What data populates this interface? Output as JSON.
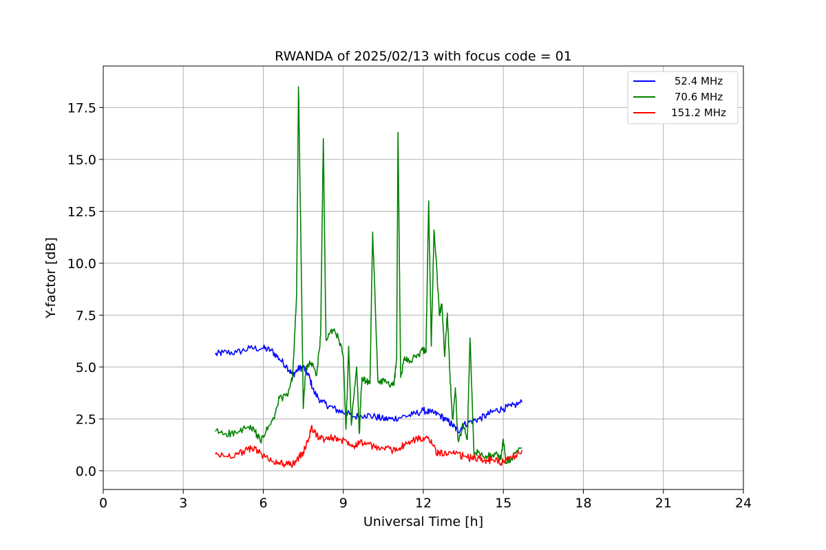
{
  "chart_data": {
    "type": "line",
    "title": "RWANDA of 2025/02/13 with focus code = 01",
    "xlabel": "Universal Time [h]",
    "ylabel": "Y-factor [dB]",
    "xlim": [
      0,
      24
    ],
    "ylim": [
      -0.9,
      19.5
    ],
    "xticks": [
      0,
      3,
      6,
      9,
      12,
      15,
      18,
      21,
      24
    ],
    "xtick_labels": [
      "0",
      "3",
      "6",
      "9",
      "12",
      "15",
      "18",
      "21",
      "24"
    ],
    "yticks": [
      0.0,
      2.5,
      5.0,
      7.5,
      10.0,
      12.5,
      15.0,
      17.5
    ],
    "ytick_labels": [
      "0.0",
      "2.5",
      "5.0",
      "7.5",
      "10.0",
      "12.5",
      "15.0",
      "17.5"
    ],
    "grid": true,
    "legend_position": "top-right",
    "series": [
      {
        "name": "52.4 MHz",
        "color": "#0000ff",
        "x": [
          4.2,
          4.5,
          5.0,
          5.5,
          6.0,
          6.3,
          6.6,
          6.9,
          7.1,
          7.3,
          7.5,
          7.7,
          7.9,
          8.2,
          8.5,
          8.8,
          9.1,
          9.4,
          9.8,
          10.2,
          10.5,
          10.8,
          11.2,
          11.6,
          12.0,
          12.3,
          12.6,
          12.9,
          13.1,
          13.3,
          13.5,
          13.8,
          14.1,
          14.4,
          14.7,
          15.0,
          15.3,
          15.7
        ],
        "y": [
          5.6,
          5.7,
          5.7,
          5.9,
          5.9,
          5.8,
          5.4,
          5.0,
          4.6,
          4.9,
          5.0,
          4.6,
          3.8,
          3.3,
          3.1,
          2.9,
          2.8,
          2.6,
          2.7,
          2.6,
          2.5,
          2.5,
          2.6,
          2.7,
          2.9,
          2.8,
          2.7,
          2.4,
          2.2,
          1.9,
          2.2,
          2.4,
          2.5,
          2.7,
          2.9,
          3.0,
          3.1,
          3.3
        ]
      },
      {
        "name": "70.6 MHz",
        "color": "#008000",
        "x": [
          4.2,
          4.6,
          5.0,
          5.4,
          5.7,
          5.9,
          6.1,
          6.4,
          6.6,
          6.9,
          7.1,
          7.25,
          7.32,
          7.4,
          7.5,
          7.6,
          7.8,
          8.0,
          8.15,
          8.25,
          8.35,
          8.6,
          8.8,
          9.0,
          9.1,
          9.2,
          9.3,
          9.5,
          9.6,
          9.7,
          9.85,
          10.0,
          10.1,
          10.3,
          10.6,
          10.9,
          11.0,
          11.05,
          11.15,
          11.3,
          11.5,
          11.8,
          12.0,
          12.1,
          12.2,
          12.3,
          12.4,
          12.5,
          12.6,
          12.7,
          12.8,
          12.9,
          13.0,
          13.1,
          13.2,
          13.3,
          13.5,
          13.65,
          13.75,
          13.9,
          14.1,
          14.4,
          14.7,
          14.9,
          15.0,
          15.1,
          15.3,
          15.7
        ],
        "y": [
          1.9,
          1.8,
          1.8,
          2.1,
          1.9,
          1.4,
          1.9,
          2.5,
          3.5,
          3.6,
          4.5,
          8.5,
          18.5,
          12.0,
          3.0,
          5.0,
          5.2,
          4.6,
          6.5,
          16.0,
          6.3,
          6.8,
          6.5,
          5.5,
          2.0,
          6.0,
          2.2,
          5.0,
          1.8,
          4.5,
          4.3,
          4.2,
          11.5,
          4.3,
          4.3,
          4.1,
          5.5,
          16.3,
          4.5,
          5.5,
          5.3,
          5.6,
          5.8,
          5.7,
          13.0,
          6.0,
          11.6,
          9.8,
          7.5,
          8.0,
          5.5,
          7.6,
          4.5,
          2.5,
          4.0,
          1.5,
          2.2,
          1.5,
          6.4,
          0.8,
          0.9,
          0.7,
          0.8,
          0.6,
          1.5,
          0.4,
          0.6,
          1.1
        ]
      },
      {
        "name": "151.2 MHz",
        "color": "#ff0000",
        "x": [
          4.2,
          4.6,
          5.0,
          5.4,
          5.7,
          6.0,
          6.3,
          6.6,
          6.9,
          7.1,
          7.3,
          7.5,
          7.7,
          7.8,
          8.0,
          8.3,
          8.6,
          8.9,
          9.2,
          9.4,
          9.6,
          9.9,
          10.2,
          10.5,
          10.8,
          11.1,
          11.4,
          11.7,
          12.0,
          12.3,
          12.5,
          12.6,
          12.9,
          13.2,
          13.5,
          13.8,
          14.1,
          14.4,
          14.7,
          15.0,
          15.3,
          15.7
        ],
        "y": [
          0.8,
          0.7,
          0.8,
          1.0,
          1.1,
          0.7,
          0.5,
          0.4,
          0.3,
          0.3,
          0.6,
          0.9,
          1.5,
          2.1,
          1.7,
          1.5,
          1.6,
          1.5,
          1.4,
          1.2,
          1.4,
          1.3,
          1.1,
          1.1,
          1.0,
          1.1,
          1.3,
          1.5,
          1.6,
          1.5,
          0.8,
          0.9,
          0.8,
          0.8,
          0.7,
          0.6,
          0.6,
          0.5,
          0.5,
          0.4,
          0.6,
          1.0
        ]
      }
    ]
  }
}
